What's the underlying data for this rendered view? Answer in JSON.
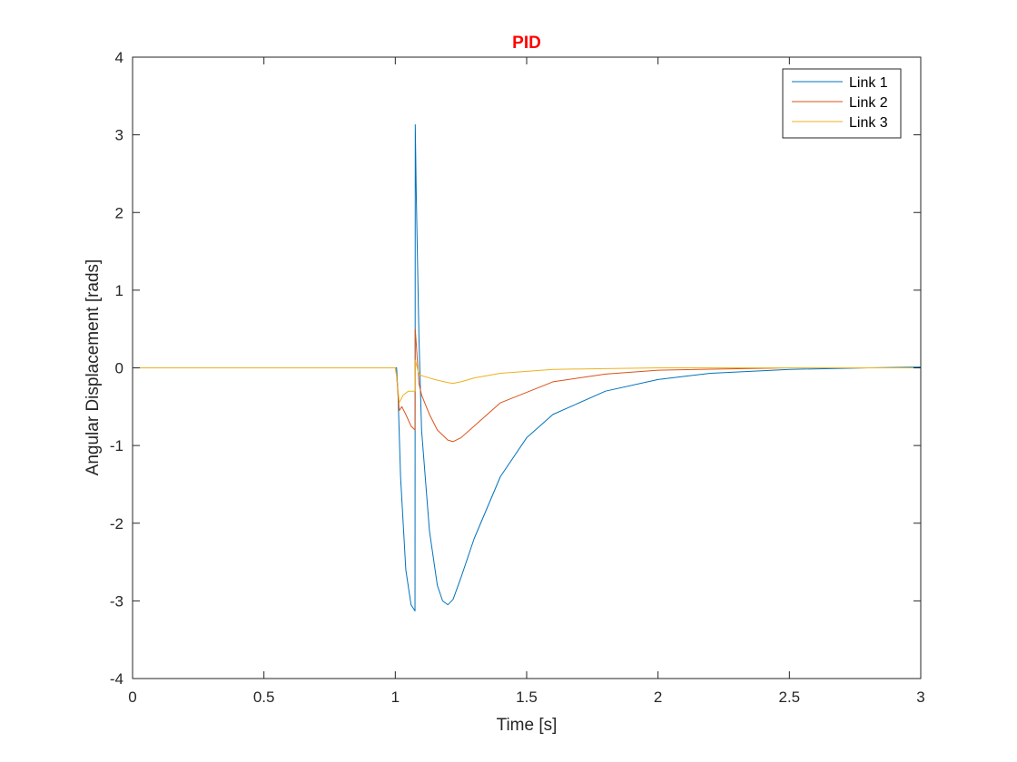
{
  "chart_data": {
    "type": "line",
    "title": "PID",
    "title_color": "#ff0000",
    "xlabel": "Time [s]",
    "ylabel": "Angular Displacement [rads]",
    "xlim": [
      0,
      3
    ],
    "ylim": [
      -4,
      4
    ],
    "xticks": [
      "0",
      "0.5",
      "1",
      "1.5",
      "2",
      "2.5",
      "3"
    ],
    "xtick_values": [
      0,
      0.5,
      1,
      1.5,
      2,
      2.5,
      3
    ],
    "yticks": [
      "-4",
      "-3",
      "-2",
      "-1",
      "0",
      "1",
      "2",
      "3",
      "4"
    ],
    "ytick_values": [
      -4,
      -3,
      -2,
      -1,
      0,
      1,
      2,
      3,
      4
    ],
    "grid": false,
    "legend_position": "top-right",
    "series": [
      {
        "name": "Link 1",
        "color": "#0072bd",
        "x": [
          0,
          1.0,
          1.005,
          1.01,
          1.02,
          1.04,
          1.06,
          1.075,
          1.076,
          1.08,
          1.09,
          1.1,
          1.13,
          1.16,
          1.18,
          1.2,
          1.22,
          1.25,
          1.3,
          1.4,
          1.5,
          1.6,
          1.8,
          2.0,
          2.2,
          2.5,
          2.8,
          3.0
        ],
        "y": [
          0,
          0,
          0.0,
          -0.3,
          -1.4,
          -2.6,
          -3.05,
          -3.13,
          3.13,
          2.2,
          0.4,
          -0.8,
          -2.1,
          -2.8,
          -3.0,
          -3.05,
          -2.98,
          -2.7,
          -2.2,
          -1.4,
          -0.9,
          -0.6,
          -0.3,
          -0.15,
          -0.07,
          -0.02,
          0.0,
          0.01
        ]
      },
      {
        "name": "Link 2",
        "color": "#d95319",
        "x": [
          0,
          1.0,
          1.005,
          1.015,
          1.025,
          1.04,
          1.06,
          1.075,
          1.076,
          1.09,
          1.1,
          1.13,
          1.16,
          1.2,
          1.22,
          1.25,
          1.3,
          1.4,
          1.6,
          1.8,
          2.0,
          2.5,
          3.0
        ],
        "y": [
          0,
          0,
          -0.1,
          -0.55,
          -0.5,
          -0.6,
          -0.75,
          -0.8,
          0.5,
          -0.2,
          -0.35,
          -0.6,
          -0.8,
          -0.93,
          -0.95,
          -0.9,
          -0.75,
          -0.45,
          -0.18,
          -0.08,
          -0.03,
          0.0,
          0.0
        ]
      },
      {
        "name": "Link 3",
        "color": "#edb120",
        "x": [
          0,
          1.0,
          1.005,
          1.015,
          1.03,
          1.05,
          1.075,
          1.076,
          1.09,
          1.1,
          1.15,
          1.2,
          1.22,
          1.25,
          1.3,
          1.4,
          1.6,
          1.8,
          2.0,
          3.0
        ],
        "y": [
          0,
          0,
          -0.1,
          -0.45,
          -0.35,
          -0.3,
          -0.3,
          0.1,
          -0.08,
          -0.1,
          -0.15,
          -0.19,
          -0.2,
          -0.18,
          -0.13,
          -0.07,
          -0.02,
          -0.01,
          0.0,
          0.0
        ]
      }
    ]
  }
}
